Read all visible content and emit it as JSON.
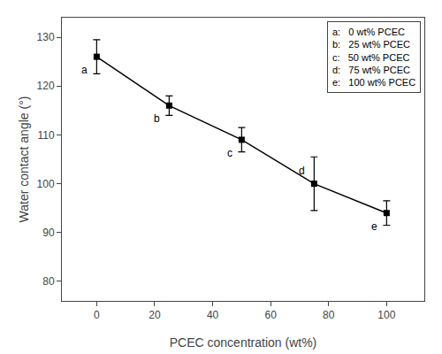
{
  "chart_data": {
    "type": "line",
    "x": [
      0,
      25,
      50,
      75,
      100
    ],
    "series": [
      {
        "values": [
          126,
          116,
          109,
          100,
          94
        ],
        "yerr": [
          3.5,
          2.0,
          2.5,
          5.5,
          2.5
        ],
        "color": "black",
        "marker": "square",
        "line_style": "solid"
      }
    ],
    "xlabel": "PCEC concentration (wt%)",
    "ylabel": "Water contact angle (°)",
    "xlim": [
      -12,
      113
    ],
    "ylim": [
      76,
      134
    ],
    "xticks": [
      0,
      20,
      40,
      60,
      80,
      100
    ],
    "yticks": [
      80,
      90,
      100,
      110,
      120,
      130
    ],
    "grid": false,
    "annotations": [
      {
        "text": "a",
        "x": 0,
        "y": 126,
        "position": "below"
      },
      {
        "text": "b",
        "x": 25,
        "y": 116,
        "position": "below"
      },
      {
        "text": "c",
        "x": 50,
        "y": 109,
        "position": "below"
      },
      {
        "text": "d",
        "x": 75,
        "y": 100,
        "position": "above"
      },
      {
        "text": "e",
        "x": 100,
        "y": 94,
        "position": "below"
      }
    ],
    "legend": "upper right",
    "legend_entries": [
      "a:   0 wt% PCEC",
      "b:   25 wt% PCEC",
      "c:   50 wt% PCEC",
      "d:   75 wt% PCEC",
      "e:   100 wt% PCEC"
    ]
  }
}
